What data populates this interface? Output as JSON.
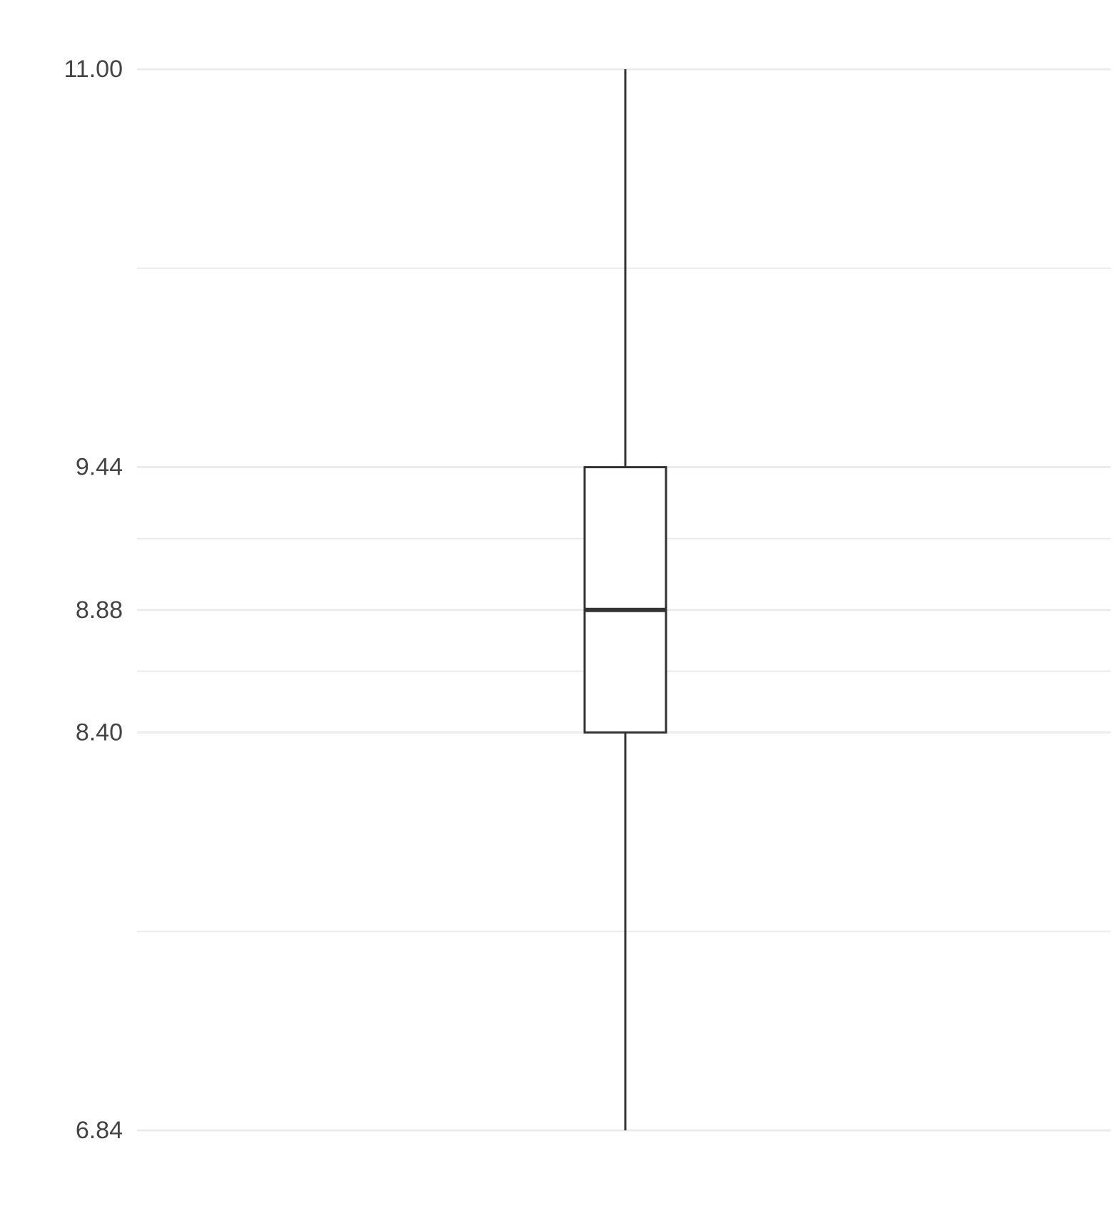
{
  "chart_data": {
    "type": "boxplot",
    "title": "",
    "xlabel": "",
    "ylabel": "",
    "ylim": [
      6.84,
      11.0
    ],
    "y_ticks": [
      6.84,
      8.4,
      8.88,
      9.44,
      11.0
    ],
    "y_tick_labels": [
      "6.84",
      "8.40",
      "8.88",
      "9.44",
      "11.00"
    ],
    "y_minor_gridlines": [
      7.62,
      8.64,
      9.16,
      10.22
    ],
    "grid": true,
    "legend": "none",
    "box": {
      "min": 6.84,
      "q1": 8.4,
      "median": 8.88,
      "q3": 9.44,
      "max": 11.0
    },
    "colors": {
      "box_outline": "#333333",
      "box_fill": "#ffffff",
      "grid": "#ebebeb",
      "tick_text": "#444444"
    }
  }
}
